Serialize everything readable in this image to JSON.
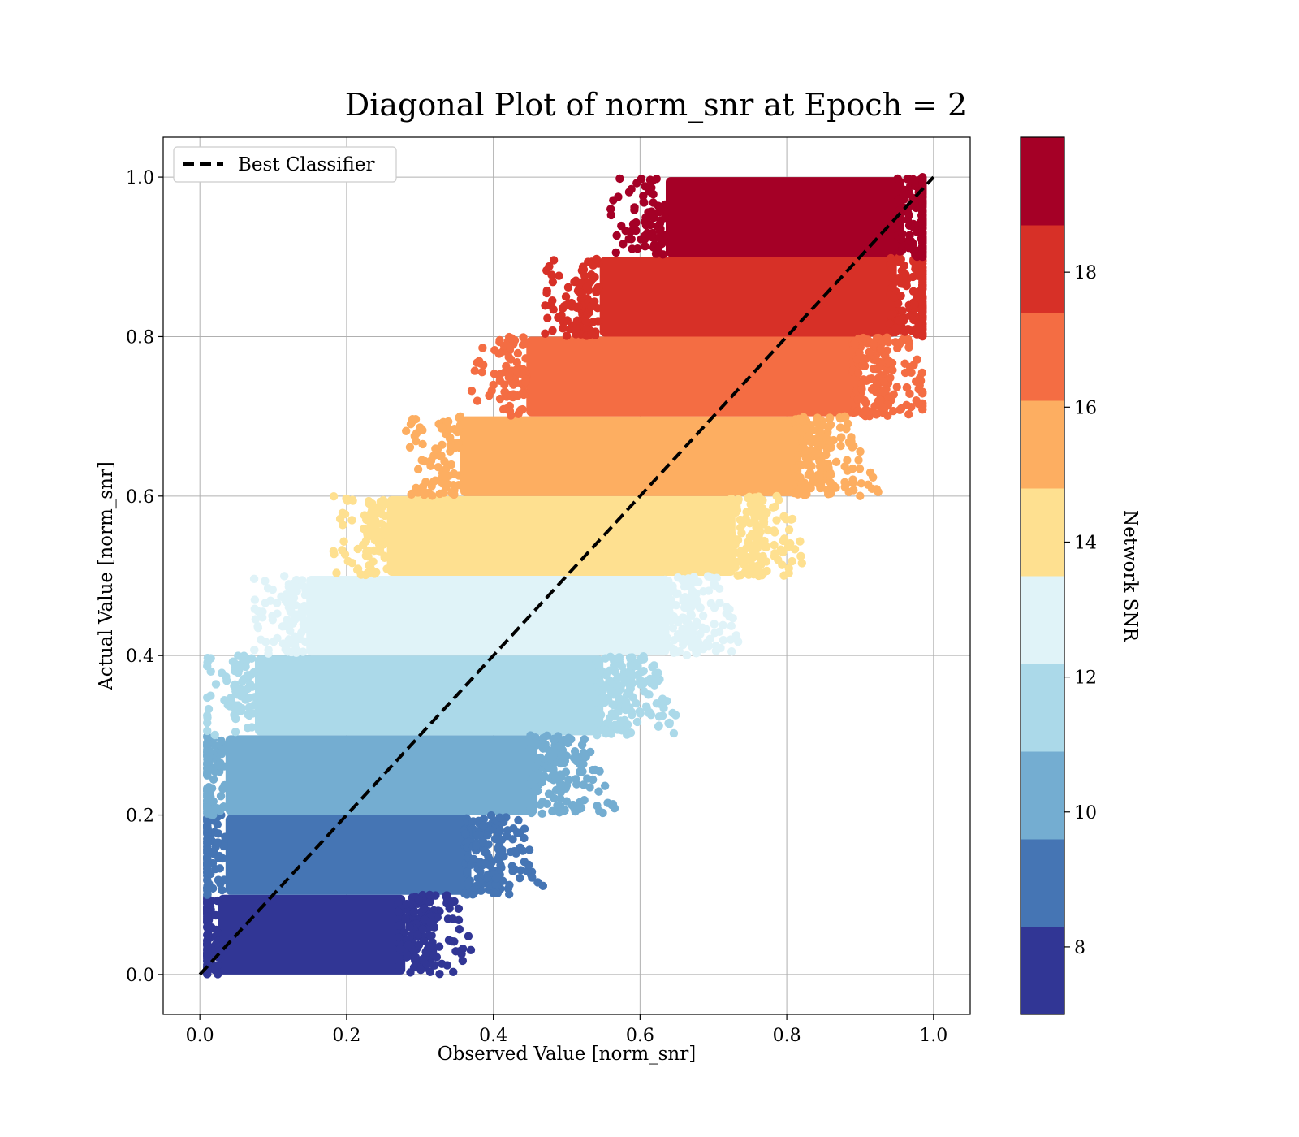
{
  "chart_data": {
    "type": "scatter",
    "title": "Diagonal Plot of norm_snr at Epoch = 2",
    "xlabel": "Observed Value [norm_snr]",
    "ylabel": "Actual Value [norm_snr]",
    "xlim": [
      -0.05,
      1.05
    ],
    "ylim": [
      -0.05,
      1.05
    ],
    "x_ticks": [
      "0.0",
      "0.2",
      "0.4",
      "0.6",
      "0.8",
      "1.0"
    ],
    "y_ticks": [
      "0.0",
      "0.2",
      "0.4",
      "0.6",
      "0.8",
      "1.0"
    ],
    "grid": true,
    "legend": {
      "position": "top-left",
      "entries": [
        "Best Classifier"
      ]
    },
    "reference_line": {
      "name": "Best Classifier",
      "style": "dashed",
      "color": "#000000",
      "x": [
        0,
        1
      ],
      "y": [
        0,
        1
      ]
    },
    "colorbar": {
      "label": "Network SNR",
      "range": [
        7,
        20
      ],
      "ticks": [
        "8",
        "10",
        "12",
        "14",
        "16",
        "18"
      ],
      "colors": [
        "#313695",
        "#4575b4",
        "#74add1",
        "#abd9e9",
        "#e0f3f8",
        "#fee090",
        "#fdae61",
        "#f46d43",
        "#d73027",
        "#a50026"
      ]
    },
    "bands": [
      {
        "y_range": [
          0.0,
          0.1
        ],
        "x_min_core": 0.01,
        "x_max_core": 0.3,
        "color_index": 0
      },
      {
        "y_range": [
          0.1,
          0.2
        ],
        "x_min_core": 0.02,
        "x_max_core": 0.39,
        "color_index": 1
      },
      {
        "y_range": [
          0.2,
          0.3
        ],
        "x_min_core": 0.02,
        "x_max_core": 0.48,
        "color_index": 2
      },
      {
        "y_range": [
          0.3,
          0.4
        ],
        "x_min_core": 0.06,
        "x_max_core": 0.57,
        "color_index": 3
      },
      {
        "y_range": [
          0.4,
          0.5
        ],
        "x_min_core": 0.13,
        "x_max_core": 0.66,
        "color_index": 4
      },
      {
        "y_range": [
          0.5,
          0.6
        ],
        "x_min_core": 0.24,
        "x_max_core": 0.75,
        "color_index": 5
      },
      {
        "y_range": [
          0.6,
          0.7
        ],
        "x_min_core": 0.34,
        "x_max_core": 0.84,
        "color_index": 6
      },
      {
        "y_range": [
          0.7,
          0.8
        ],
        "x_min_core": 0.43,
        "x_max_core": 0.92,
        "color_index": 7
      },
      {
        "y_range": [
          0.8,
          0.9
        ],
        "x_min_core": 0.53,
        "x_max_core": 0.97,
        "color_index": 8
      },
      {
        "y_range": [
          0.9,
          1.0
        ],
        "x_min_core": 0.62,
        "x_max_core": 0.98,
        "color_index": 9
      }
    ]
  }
}
